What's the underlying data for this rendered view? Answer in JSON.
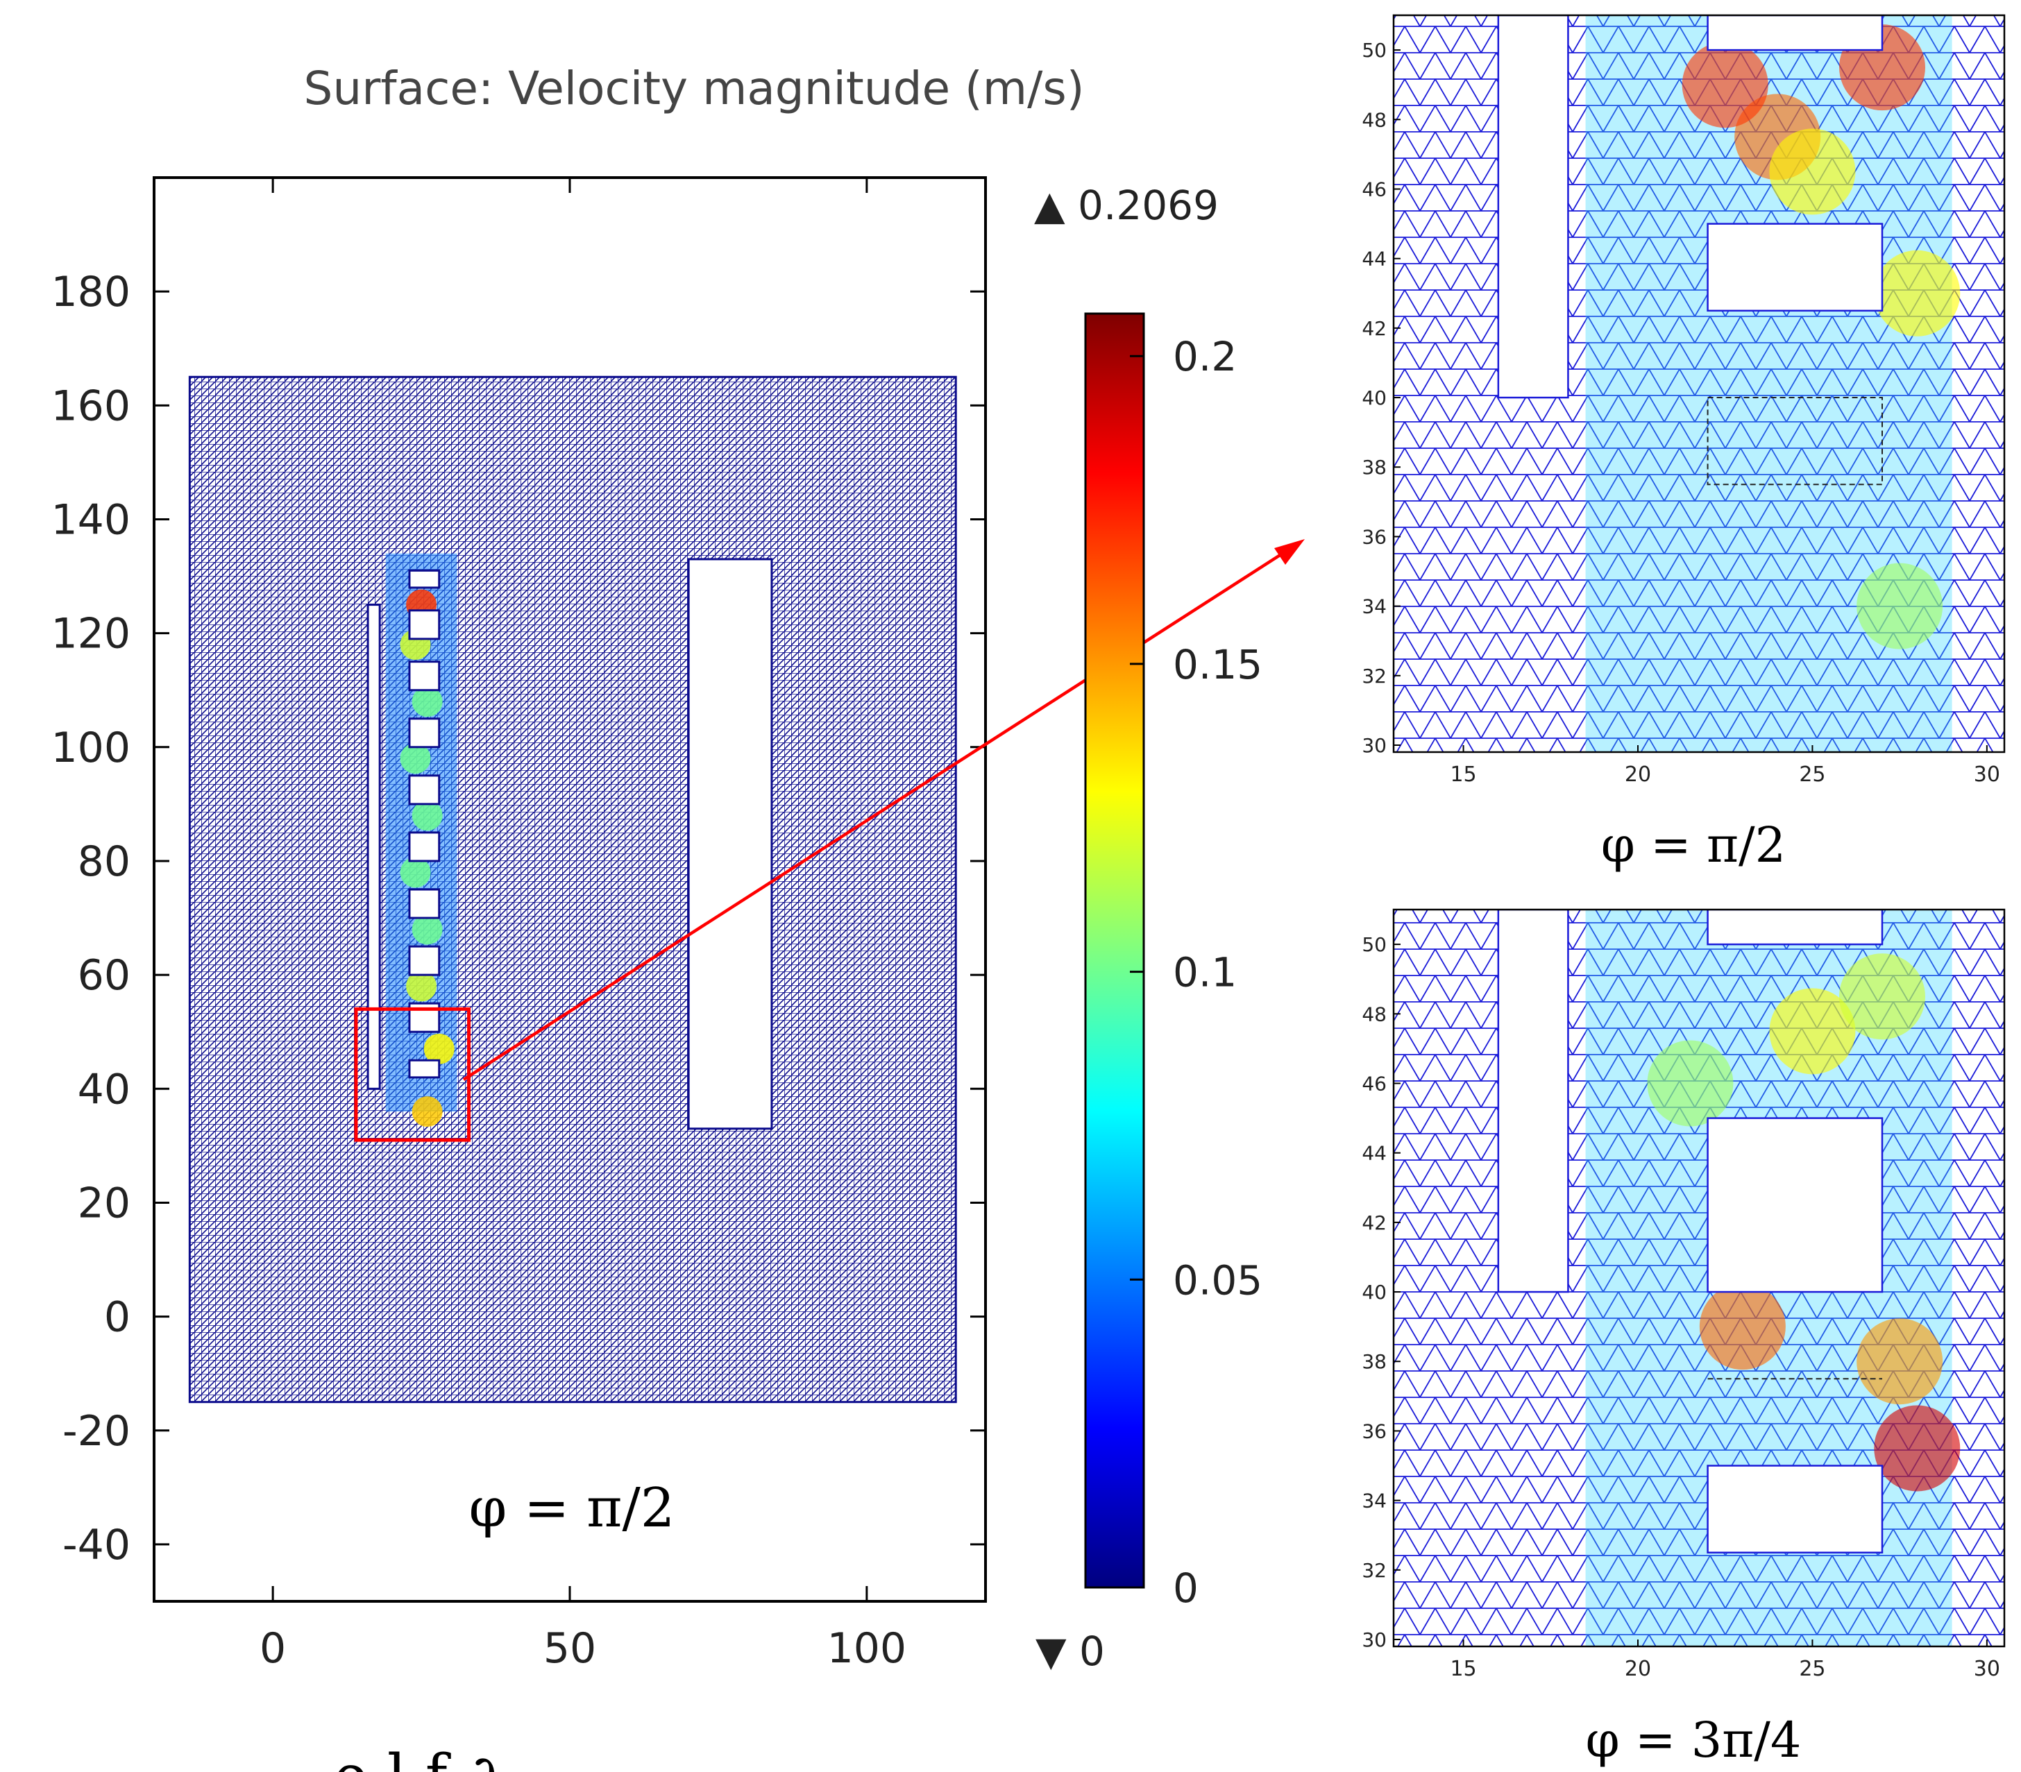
{
  "main_plot": {
    "title": "Surface: Velocity magnitude (m/s)",
    "phase_label": "φ = π/2",
    "x_ticks": [
      0,
      50,
      100
    ],
    "y_ticks": [
      -40,
      -20,
      0,
      20,
      40,
      60,
      80,
      100,
      120,
      140,
      160,
      180
    ],
    "colorbar": {
      "max_label": "▲ 0.2069",
      "min_label": "▼ 0",
      "ticks": [
        0,
        0.05,
        0.1,
        0.15,
        0.2
      ],
      "min": 0,
      "max": 0.2069,
      "colormap": "jet"
    }
  },
  "zoom_top": {
    "label": "φ = π/2",
    "x_ticks": [
      15,
      20,
      25,
      30
    ],
    "y_ticks": [
      30,
      32,
      34,
      36,
      38,
      40,
      42,
      44,
      46,
      48,
      50
    ]
  },
  "zoom_bottom": {
    "label": "φ = 3π/4",
    "x_ticks": [
      15,
      20,
      25,
      30
    ],
    "y_ticks": [
      30,
      32,
      34,
      36,
      38,
      40,
      42,
      44,
      46,
      48,
      50
    ]
  },
  "footer_fragment": "ρ        l        f    ∂",
  "chart_data": [
    {
      "type": "heatmap",
      "title": "Surface: Velocity magnitude (m/s)",
      "annotation": "φ = π/2",
      "xlim": [
        -20,
        120
      ],
      "ylim": [
        -50,
        200
      ],
      "x_ticks": [
        0,
        50,
        100
      ],
      "y_ticks": [
        -40,
        -20,
        0,
        20,
        40,
        60,
        80,
        100,
        120,
        140,
        160,
        180
      ],
      "colorbar": {
        "min": 0,
        "max": 0.2069,
        "ticks": [
          0,
          0.05,
          0.1,
          0.15,
          0.2
        ],
        "colormap": "jet"
      },
      "mesh_domain": {
        "x": [
          -14,
          115
        ],
        "y": [
          -15,
          165
        ]
      },
      "zoom_box": {
        "x": [
          14,
          33
        ],
        "y": [
          31,
          54
        ]
      },
      "holes": [
        {
          "x": [
            16,
            18
          ],
          "y": [
            40,
            125
          ]
        },
        {
          "x": [
            70,
            84
          ],
          "y": [
            33,
            133
          ]
        }
      ],
      "squares": [
        {
          "x": [
            23,
            28
          ],
          "y": [
            128,
            131
          ]
        },
        {
          "x": [
            23,
            28
          ],
          "y": [
            119,
            124
          ]
        },
        {
          "x": [
            23,
            28
          ],
          "y": [
            110,
            115
          ]
        },
        {
          "x": [
            23,
            28
          ],
          "y": [
            100,
            105
          ]
        },
        {
          "x": [
            23,
            28
          ],
          "y": [
            90,
            95
          ]
        },
        {
          "x": [
            23,
            28
          ],
          "y": [
            80,
            85
          ]
        },
        {
          "x": [
            23,
            28
          ],
          "y": [
            70,
            75
          ]
        },
        {
          "x": [
            23,
            28
          ],
          "y": [
            60,
            65
          ]
        },
        {
          "x": [
            23,
            28
          ],
          "y": [
            50,
            55
          ]
        },
        {
          "x": [
            23,
            28
          ],
          "y": [
            42,
            45
          ]
        }
      ],
      "hot_spots": [
        {
          "x": 25,
          "y": 125,
          "v": 0.17
        },
        {
          "x": 24,
          "y": 118,
          "v": 0.12
        },
        {
          "x": 26,
          "y": 108,
          "v": 0.1
        },
        {
          "x": 24,
          "y": 98,
          "v": 0.1
        },
        {
          "x": 26,
          "y": 88,
          "v": 0.1
        },
        {
          "x": 24,
          "y": 78,
          "v": 0.1
        },
        {
          "x": 26,
          "y": 68,
          "v": 0.1
        },
        {
          "x": 25,
          "y": 58,
          "v": 0.12
        },
        {
          "x": 28,
          "y": 47,
          "v": 0.13
        },
        {
          "x": 26,
          "y": 36,
          "v": 0.14
        }
      ]
    },
    {
      "type": "heatmap",
      "annotation": "φ = π/2",
      "xlim": [
        13,
        30.5
      ],
      "ylim": [
        29.8,
        51
      ],
      "x_ticks": [
        15,
        20,
        25,
        30
      ],
      "y_ticks": [
        30,
        32,
        34,
        36,
        38,
        40,
        42,
        44,
        46,
        48,
        50
      ],
      "slot": {
        "x": [
          16,
          18
        ],
        "y": [
          40,
          51
        ]
      },
      "boxes": [
        {
          "x": [
            22,
            27
          ],
          "y": [
            50,
            51
          ]
        },
        {
          "x": [
            22,
            27
          ],
          "y": [
            42.5,
            45
          ]
        }
      ],
      "dashed_box": {
        "x": [
          22,
          27
        ],
        "y": [
          37.5,
          40
        ]
      },
      "hot_spots": [
        {
          "x": 24,
          "y": 47.5,
          "v": 0.16
        },
        {
          "x": 22.5,
          "y": 49,
          "v": 0.17
        },
        {
          "x": 27,
          "y": 49.5,
          "v": 0.17
        },
        {
          "x": 25,
          "y": 46.5,
          "v": 0.13
        },
        {
          "x": 28,
          "y": 43,
          "v": 0.13
        },
        {
          "x": 27.5,
          "y": 34,
          "v": 0.11
        }
      ]
    },
    {
      "type": "heatmap",
      "annotation": "φ = 3π/4",
      "xlim": [
        13,
        30.5
      ],
      "ylim": [
        29.8,
        51
      ],
      "x_ticks": [
        15,
        20,
        25,
        30
      ],
      "y_ticks": [
        30,
        32,
        34,
        36,
        38,
        40,
        42,
        44,
        46,
        48,
        50
      ],
      "slot": {
        "x": [
          16,
          18
        ],
        "y": [
          40,
          51
        ]
      },
      "boxes": [
        {
          "x": [
            22,
            27
          ],
          "y": [
            50,
            51
          ]
        },
        {
          "x": [
            22,
            27
          ],
          "y": [
            40,
            45
          ]
        },
        {
          "x": [
            22,
            27
          ],
          "y": [
            32.5,
            35
          ]
        }
      ],
      "dashed_line": {
        "x": [
          22,
          27
        ],
        "y": 37.5
      },
      "hot_spots": [
        {
          "x": 28,
          "y": 35.5,
          "v": 0.19
        },
        {
          "x": 23,
          "y": 39,
          "v": 0.16
        },
        {
          "x": 27.5,
          "y": 38,
          "v": 0.15
        },
        {
          "x": 25,
          "y": 47.5,
          "v": 0.13
        },
        {
          "x": 27,
          "y": 48.5,
          "v": 0.12
        },
        {
          "x": 21.5,
          "y": 46,
          "v": 0.11
        }
      ]
    }
  ]
}
